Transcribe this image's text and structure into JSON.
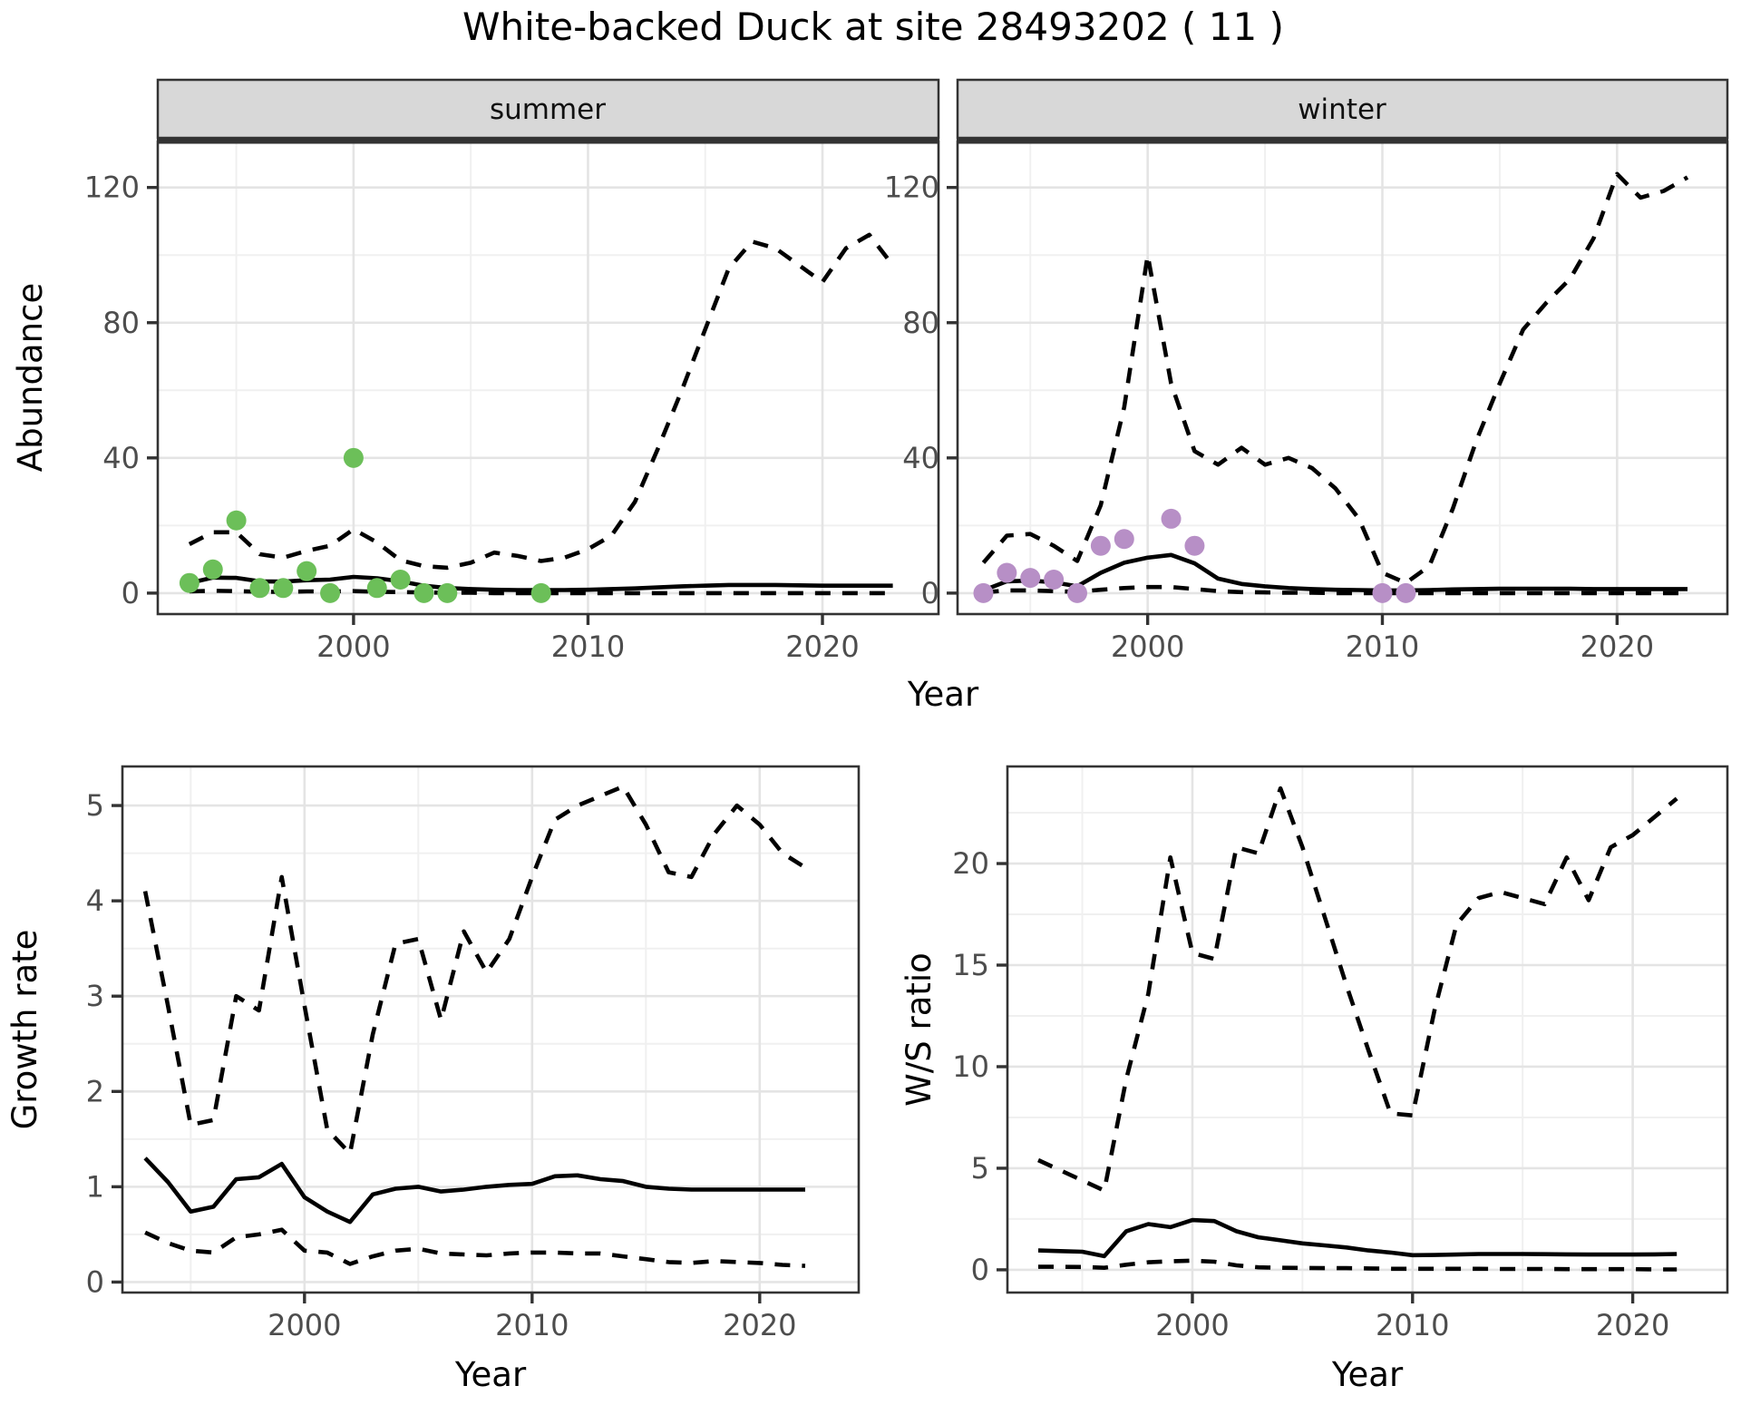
{
  "title": "White-backed Duck at site 28493202 ( 11 )",
  "axes": {
    "x_label_top": "Year",
    "x_label_growth": "Year",
    "x_label_ws": "Year",
    "abundance_label": "Abundance",
    "growth_label": "Growth rate",
    "ws_label": "W/S ratio"
  },
  "facets": [
    {
      "label": "summer"
    },
    {
      "label": "winter"
    }
  ],
  "colors": {
    "summer_points": "#6cbf59",
    "winter_points": "#b78fc6",
    "line": "#000000",
    "strip_bg": "#d8d8d8",
    "strip_border": "#333333",
    "panel_border": "#333333",
    "grid_major": "#e4e4e4",
    "grid_minor": "#f0f0f0",
    "axis_text": "#4d4d4d",
    "tick_mark": "#333333"
  },
  "chart_data": [
    {
      "id": "summer",
      "type": "line",
      "facet": "summer",
      "ylabel": "Abundance",
      "xlabel": "Year",
      "xlim": [
        1991.65,
        2024.95
      ],
      "ylim": [
        -6.2,
        133.6
      ],
      "x_ticks": [
        2000,
        2010,
        2020
      ],
      "x_minor_ticks": [
        1995,
        2005,
        2015
      ],
      "y_ticks": [
        0,
        40,
        80,
        120
      ],
      "y_minor_ticks": [
        20,
        60,
        100
      ],
      "grid": true,
      "legend": "none",
      "years": [
        1993,
        1994,
        1995,
        1996,
        1997,
        1998,
        1999,
        2000,
        2001,
        2002,
        2003,
        2004,
        2005,
        2006,
        2007,
        2008,
        2009,
        2010,
        2011,
        2012,
        2013,
        2014,
        2015,
        2016,
        2017,
        2018,
        2019,
        2020,
        2021,
        2022,
        2023
      ],
      "series": [
        {
          "name": "median",
          "style": "solid",
          "values": [
            3,
            4.6,
            4.5,
            3.5,
            3.4,
            3.8,
            4,
            4.8,
            4.4,
            3.5,
            2.2,
            1.5,
            1.2,
            1,
            0.9,
            0.9,
            0.9,
            1,
            1.2,
            1.4,
            1.7,
            2,
            2.2,
            2.4,
            2.4,
            2.4,
            2.3,
            2.2,
            2.2,
            2.2,
            2.2
          ]
        },
        {
          "name": "upper_ci",
          "style": "dashed",
          "values": [
            14.5,
            18,
            18,
            11.5,
            10.5,
            12.5,
            14,
            18.9,
            15,
            9.7,
            8,
            7.5,
            9,
            12,
            11,
            9.5,
            10.5,
            13,
            17,
            27,
            43,
            60,
            78,
            96,
            104,
            102,
            97,
            92,
            102,
            106,
            97
          ]
        },
        {
          "name": "lower_ci",
          "style": "dashed",
          "values": [
            0.5,
            0.7,
            0.6,
            0.4,
            0.4,
            0.5,
            0.5,
            0.6,
            0.4,
            0.3,
            0.2,
            0.1,
            0.1,
            0,
            0,
            0,
            0,
            0,
            0,
            0,
            0,
            0,
            0,
            0,
            0,
            0,
            0,
            0,
            0,
            0,
            0
          ]
        }
      ],
      "points": {
        "name": "summer-observations",
        "color_key": "summer_points",
        "data": [
          [
            1993,
            3
          ],
          [
            1994,
            7
          ],
          [
            1995,
            21.5
          ],
          [
            1996,
            1.5
          ],
          [
            1997,
            1.5
          ],
          [
            1998,
            6.5
          ],
          [
            1999,
            0
          ],
          [
            2000,
            40
          ],
          [
            2001,
            1.5
          ],
          [
            2002,
            4
          ],
          [
            2003,
            0
          ],
          [
            2004,
            0
          ],
          [
            2008,
            0
          ]
        ]
      }
    },
    {
      "id": "winter",
      "type": "line",
      "facet": "winter",
      "ylabel": "Abundance",
      "xlabel": "Year",
      "xlim": [
        1991.9,
        2024.7
      ],
      "ylim": [
        -6.2,
        133.6
      ],
      "x_ticks": [
        2000,
        2010,
        2020
      ],
      "x_minor_ticks": [
        1995,
        2005,
        2015
      ],
      "y_ticks": [
        0,
        40,
        80,
        120
      ],
      "y_minor_ticks": [
        20,
        60,
        100
      ],
      "grid": true,
      "legend": "none",
      "years": [
        1993,
        1994,
        1995,
        1996,
        1997,
        1998,
        1999,
        2000,
        2001,
        2002,
        2003,
        2004,
        2005,
        2006,
        2007,
        2008,
        2009,
        2010,
        2011,
        2012,
        2013,
        2014,
        2015,
        2016,
        2017,
        2018,
        2019,
        2020,
        2021,
        2022,
        2023
      ],
      "series": [
        {
          "name": "median",
          "style": "solid",
          "values": [
            0.8,
            3.5,
            3.7,
            3.2,
            2,
            6,
            9,
            10.5,
            11.3,
            8.8,
            4.3,
            2.7,
            2,
            1.5,
            1.2,
            1,
            0.9,
            0.8,
            0.8,
            0.9,
            1.1,
            1.2,
            1.3,
            1.3,
            1.3,
            1.3,
            1.2,
            1.2,
            1.2,
            1.2,
            1.2
          ]
        },
        {
          "name": "upper_ci",
          "style": "dashed",
          "values": [
            9,
            17,
            17.5,
            14,
            9.5,
            26,
            55,
            100,
            62,
            42,
            38,
            43,
            38,
            40,
            37,
            31,
            22,
            6,
            3,
            8,
            25,
            45,
            62,
            78,
            86,
            93,
            105,
            124,
            117,
            119,
            123
          ]
        },
        {
          "name": "lower_ci",
          "style": "dashed",
          "values": [
            0.2,
            0.8,
            0.8,
            0.6,
            0.4,
            1,
            1.5,
            1.8,
            1.8,
            1.2,
            0.6,
            0.3,
            0.2,
            0.1,
            0.1,
            0,
            0,
            0,
            0,
            0,
            0,
            0,
            0,
            0,
            0,
            0,
            0,
            0,
            0,
            0,
            0
          ]
        }
      ],
      "points": {
        "name": "winter-observations",
        "color_key": "winter_points",
        "data": [
          [
            1993,
            0
          ],
          [
            1994,
            6
          ],
          [
            1995,
            4.5
          ],
          [
            1996,
            4
          ],
          [
            1997,
            0
          ],
          [
            1998,
            14
          ],
          [
            1999,
            16
          ],
          [
            2001,
            22
          ],
          [
            2002,
            14
          ],
          [
            2010,
            0
          ],
          [
            2011,
            0
          ]
        ]
      }
    },
    {
      "id": "growth",
      "type": "line",
      "facet": null,
      "ylabel": "Growth rate",
      "xlabel": "Year",
      "xlim": [
        1992.0,
        2024.35
      ],
      "ylim": [
        -0.11,
        5.41
      ],
      "x_ticks": [
        2000,
        2010,
        2020
      ],
      "x_minor_ticks": [
        1995,
        2005,
        2015
      ],
      "y_ticks": [
        0,
        1,
        2,
        3,
        4,
        5
      ],
      "y_minor_ticks": [
        0.5,
        1.5,
        2.5,
        3.5,
        4.5
      ],
      "grid": true,
      "legend": "none",
      "years": [
        1993,
        1994,
        1995,
        1996,
        1997,
        1998,
        1999,
        2000,
        2001,
        2002,
        2003,
        2004,
        2005,
        2006,
        2007,
        2008,
        2009,
        2010,
        2011,
        2012,
        2013,
        2014,
        2015,
        2016,
        2017,
        2018,
        2019,
        2020,
        2021,
        2022
      ],
      "series": [
        {
          "name": "median",
          "style": "solid",
          "values": [
            1.3,
            1.05,
            0.74,
            0.79,
            1.08,
            1.1,
            1.24,
            0.89,
            0.74,
            0.63,
            0.92,
            0.98,
            1.0,
            0.95,
            0.97,
            1.0,
            1.02,
            1.03,
            1.11,
            1.12,
            1.08,
            1.06,
            1.0,
            0.98,
            0.97,
            0.97,
            0.97,
            0.97,
            0.97,
            0.97
          ]
        },
        {
          "name": "upper_ci",
          "style": "dashed",
          "values": [
            4.1,
            2.9,
            1.65,
            1.7,
            3.0,
            2.85,
            4.25,
            2.9,
            1.6,
            1.35,
            2.6,
            3.55,
            3.6,
            2.75,
            3.68,
            3.25,
            3.6,
            4.25,
            4.85,
            5.0,
            5.1,
            5.2,
            4.8,
            4.3,
            4.25,
            4.7,
            5.0,
            4.8,
            4.5,
            4.35
          ]
        },
        {
          "name": "lower_ci",
          "style": "dashed",
          "values": [
            0.52,
            0.41,
            0.33,
            0.31,
            0.47,
            0.5,
            0.55,
            0.33,
            0.31,
            0.19,
            0.27,
            0.33,
            0.35,
            0.3,
            0.29,
            0.28,
            0.3,
            0.31,
            0.31,
            0.3,
            0.3,
            0.27,
            0.24,
            0.21,
            0.2,
            0.22,
            0.21,
            0.2,
            0.18,
            0.17
          ]
        }
      ],
      "points": null
    },
    {
      "id": "ws",
      "type": "line",
      "facet": null,
      "ylabel": "W/S ratio",
      "xlabel": "Year",
      "xlim": [
        1991.6,
        2024.3
      ],
      "ylim": [
        -1.12,
        24.78
      ],
      "x_ticks": [
        2000,
        2010,
        2020
      ],
      "x_minor_ticks": [
        1995,
        2005,
        2015
      ],
      "y_ticks": [
        0,
        5,
        10,
        15,
        20
      ],
      "y_minor_ticks": [
        2.5,
        7.5,
        12.5,
        17.5,
        22.5
      ],
      "grid": true,
      "legend": "none",
      "years": [
        1993,
        1994,
        1995,
        1996,
        1997,
        1998,
        1999,
        2000,
        2001,
        2002,
        2003,
        2004,
        2005,
        2006,
        2007,
        2008,
        2009,
        2010,
        2011,
        2012,
        2013,
        2014,
        2015,
        2016,
        2017,
        2018,
        2019,
        2020,
        2021,
        2022
      ],
      "series": [
        {
          "name": "median",
          "style": "solid",
          "values": [
            0.95,
            0.92,
            0.89,
            0.67,
            1.9,
            2.25,
            2.1,
            2.45,
            2.4,
            1.9,
            1.6,
            1.45,
            1.3,
            1.2,
            1.1,
            0.95,
            0.85,
            0.72,
            0.73,
            0.75,
            0.78,
            0.78,
            0.78,
            0.77,
            0.76,
            0.75,
            0.75,
            0.75,
            0.76,
            0.78
          ]
        },
        {
          "name": "upper_ci",
          "style": "dashed",
          "values": [
            5.4,
            4.9,
            4.4,
            3.9,
            9.4,
            13.6,
            20.3,
            15.6,
            15.3,
            20.8,
            20.5,
            23.7,
            20.8,
            17.4,
            14.0,
            10.8,
            7.7,
            7.6,
            12.8,
            17.0,
            18.3,
            18.6,
            18.3,
            18.0,
            20.3,
            18.2,
            20.8,
            21.4,
            22.3,
            23.2
          ]
        },
        {
          "name": "lower_ci",
          "style": "dashed",
          "values": [
            0.15,
            0.15,
            0.14,
            0.1,
            0.25,
            0.37,
            0.42,
            0.45,
            0.4,
            0.22,
            0.12,
            0.1,
            0.09,
            0.08,
            0.08,
            0.07,
            0.05,
            0.05,
            0.05,
            0.05,
            0.05,
            0.04,
            0.04,
            0.04,
            0.03,
            0.03,
            0.03,
            0.03,
            0.02,
            0.02
          ]
        }
      ],
      "points": null
    }
  ]
}
